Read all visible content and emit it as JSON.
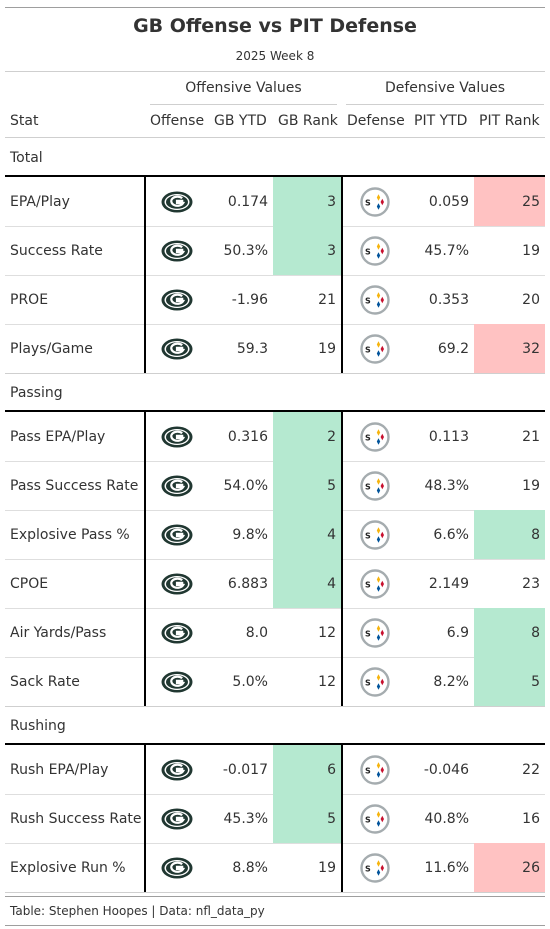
{
  "header": {
    "title": "GB Offense vs PIT Defense",
    "subtitle": "2025 Week 8"
  },
  "spanners": {
    "offense": "Offensive Values",
    "defense": "Defensive Values"
  },
  "columns": [
    "Stat",
    "Offense",
    "GB YTD",
    "GB Rank",
    "Defense",
    "PIT YTD",
    "PIT Rank"
  ],
  "colors": {
    "good_rank": "#b5e9d0",
    "bad_rank": "#ffc2c2",
    "packers_green": "#203731",
    "packers_gold": "#ffb612",
    "steelers_gray": "#a5acaf"
  },
  "icons": {
    "offense": "packers-logo-icon",
    "defense": "steelers-logo-icon"
  },
  "groups": [
    {
      "label": "Total",
      "rows": [
        {
          "stat": "EPA/Play",
          "gb_ytd": "0.174",
          "gb_rank": "3",
          "gb_rank_color": "good",
          "pit_ytd": "0.059",
          "pit_rank": "25",
          "pit_rank_color": "bad"
        },
        {
          "stat": "Success Rate",
          "gb_ytd": "50.3%",
          "gb_rank": "3",
          "gb_rank_color": "good",
          "pit_ytd": "45.7%",
          "pit_rank": "19",
          "pit_rank_color": "none"
        },
        {
          "stat": "PROE",
          "gb_ytd": "-1.96",
          "gb_rank": "21",
          "gb_rank_color": "none",
          "pit_ytd": "0.353",
          "pit_rank": "20",
          "pit_rank_color": "none"
        },
        {
          "stat": "Plays/Game",
          "gb_ytd": "59.3",
          "gb_rank": "19",
          "gb_rank_color": "none",
          "pit_ytd": "69.2",
          "pit_rank": "32",
          "pit_rank_color": "bad"
        }
      ]
    },
    {
      "label": "Passing",
      "rows": [
        {
          "stat": "Pass EPA/Play",
          "gb_ytd": "0.316",
          "gb_rank": "2",
          "gb_rank_color": "good",
          "pit_ytd": "0.113",
          "pit_rank": "21",
          "pit_rank_color": "none"
        },
        {
          "stat": "Pass Success Rate",
          "gb_ytd": "54.0%",
          "gb_rank": "5",
          "gb_rank_color": "good",
          "pit_ytd": "48.3%",
          "pit_rank": "19",
          "pit_rank_color": "none"
        },
        {
          "stat": "Explosive Pass %",
          "gb_ytd": "9.8%",
          "gb_rank": "4",
          "gb_rank_color": "good",
          "pit_ytd": "6.6%",
          "pit_rank": "8",
          "pit_rank_color": "good"
        },
        {
          "stat": "CPOE",
          "gb_ytd": "6.883",
          "gb_rank": "4",
          "gb_rank_color": "good",
          "pit_ytd": "2.149",
          "pit_rank": "23",
          "pit_rank_color": "none"
        },
        {
          "stat": "Air Yards/Pass",
          "gb_ytd": "8.0",
          "gb_rank": "12",
          "gb_rank_color": "none",
          "pit_ytd": "6.9",
          "pit_rank": "8",
          "pit_rank_color": "good"
        },
        {
          "stat": "Sack Rate",
          "gb_ytd": "5.0%",
          "gb_rank": "12",
          "gb_rank_color": "none",
          "pit_ytd": "8.2%",
          "pit_rank": "5",
          "pit_rank_color": "good"
        }
      ]
    },
    {
      "label": "Rushing",
      "rows": [
        {
          "stat": "Rush EPA/Play",
          "gb_ytd": "-0.017",
          "gb_rank": "6",
          "gb_rank_color": "good",
          "pit_ytd": "-0.046",
          "pit_rank": "22",
          "pit_rank_color": "none"
        },
        {
          "stat": "Rush Success Rate",
          "gb_ytd": "45.3%",
          "gb_rank": "5",
          "gb_rank_color": "good",
          "pit_ytd": "40.8%",
          "pit_rank": "16",
          "pit_rank_color": "none"
        },
        {
          "stat": "Explosive Run %",
          "gb_ytd": "8.8%",
          "gb_rank": "19",
          "gb_rank_color": "none",
          "pit_ytd": "11.6%",
          "pit_rank": "26",
          "pit_rank_color": "bad"
        }
      ]
    }
  ],
  "footer": "Table: Stephen Hoopes | Data: nfl_data_py"
}
